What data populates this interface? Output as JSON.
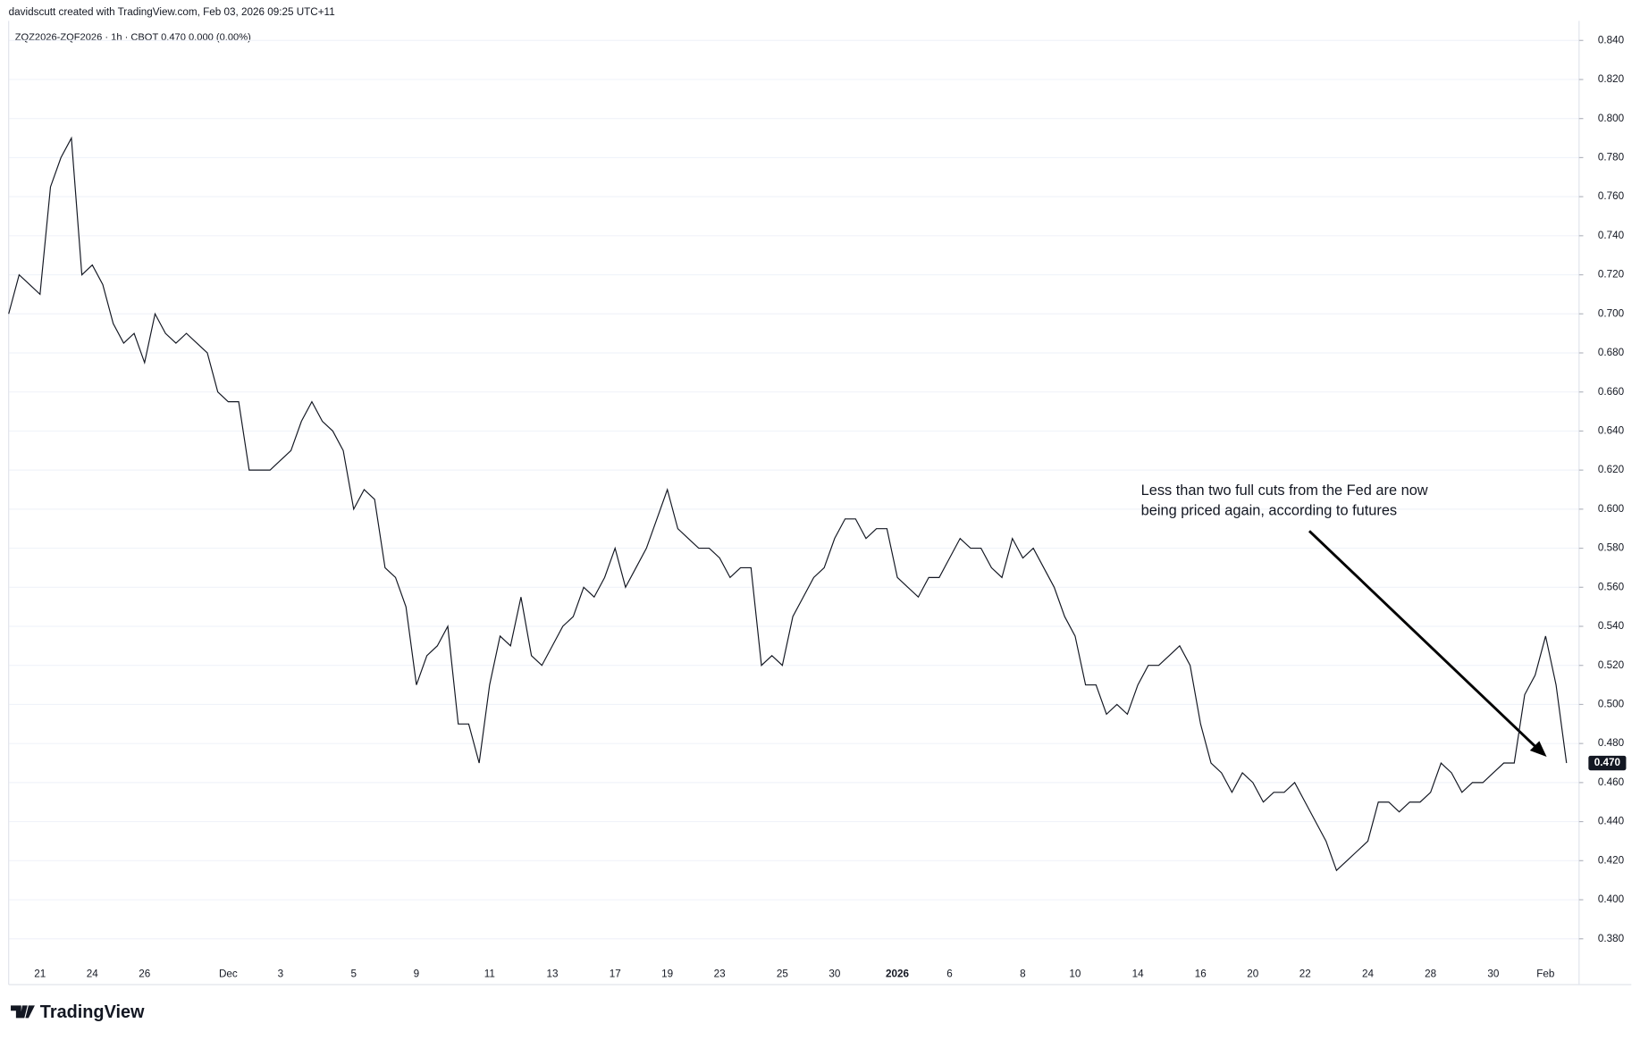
{
  "header": {
    "attribution": "davidscutt created with TradingView.com, Feb 03, 2026 09:25 UTC+11",
    "logo": "TradingView"
  },
  "chart_data": {
    "type": "line",
    "title": "ZQZ2026-ZQF2026 · 1h · CBOT  0.470  0.000 (0.00%)",
    "annotations": [
      "Less than two full cuts from the Fed are now",
      "being priced again, according to futures"
    ],
    "categories": [
      null,
      null,
      null,
      "21",
      null,
      null,
      null,
      null,
      "24",
      null,
      null,
      null,
      null,
      "26",
      null,
      null,
      null,
      null,
      null,
      null,
      null,
      "Dec",
      null,
      null,
      null,
      null,
      "3",
      null,
      null,
      null,
      null,
      null,
      null,
      "5",
      null,
      null,
      null,
      null,
      null,
      "9",
      null,
      null,
      null,
      null,
      null,
      null,
      "11",
      null,
      null,
      null,
      null,
      null,
      "13",
      null,
      null,
      null,
      null,
      null,
      "17",
      null,
      null,
      null,
      null,
      "19",
      null,
      null,
      null,
      null,
      "23",
      null,
      null,
      null,
      null,
      null,
      "25",
      null,
      null,
      null,
      null,
      "30",
      null,
      null,
      null,
      null,
      null,
      "2026",
      null,
      null,
      null,
      null,
      "6",
      null,
      null,
      null,
      null,
      null,
      null,
      "8",
      null,
      null,
      null,
      null,
      "10",
      null,
      null,
      null,
      null,
      null,
      "14",
      null,
      null,
      null,
      null,
      null,
      "16",
      null,
      null,
      null,
      null,
      "20",
      null,
      null,
      null,
      null,
      "22",
      null,
      null,
      null,
      null,
      null,
      "24",
      null,
      null,
      null,
      null,
      null,
      "28",
      null,
      null,
      null,
      null,
      null,
      "30",
      null,
      null,
      null,
      null,
      "Feb",
      null,
      null
    ],
    "series": [
      {
        "color": "#131722",
        "values": [
          0.7,
          0.72,
          0.715,
          0.71,
          0.765,
          0.78,
          0.79,
          0.72,
          0.725,
          0.715,
          0.695,
          0.685,
          0.69,
          0.675,
          0.7,
          0.69,
          0.685,
          0.69,
          0.685,
          0.68,
          0.66,
          0.655,
          0.655,
          0.62,
          0.62,
          0.62,
          0.625,
          0.63,
          0.645,
          0.655,
          0.645,
          0.64,
          0.63,
          0.6,
          0.61,
          0.605,
          0.57,
          0.565,
          0.55,
          0.51,
          0.525,
          0.53,
          0.54,
          0.49,
          0.49,
          0.47,
          0.51,
          0.535,
          0.53,
          0.555,
          0.525,
          0.52,
          0.53,
          0.54,
          0.545,
          0.56,
          0.555,
          0.565,
          0.58,
          0.56,
          0.57,
          0.58,
          0.595,
          0.61,
          0.59,
          0.585,
          0.58,
          0.58,
          0.575,
          0.565,
          0.57,
          0.57,
          0.52,
          0.525,
          0.52,
          0.545,
          0.555,
          0.565,
          0.57,
          0.585,
          0.595,
          0.595,
          0.585,
          0.59,
          0.59,
          0.565,
          0.56,
          0.555,
          0.565,
          0.565,
          0.575,
          0.585,
          0.58,
          0.58,
          0.57,
          0.565,
          0.585,
          0.575,
          0.58,
          0.57,
          0.56,
          0.545,
          0.535,
          0.51,
          0.51,
          0.495,
          0.5,
          0.495,
          0.51,
          0.52,
          0.52,
          0.525,
          0.53,
          0.52,
          0.49,
          0.47,
          0.465,
          0.455,
          0.465,
          0.46,
          0.45,
          0.455,
          0.455,
          0.46,
          0.45,
          0.44,
          0.43,
          0.415,
          0.42,
          0.425,
          0.43,
          0.45,
          0.45,
          0.445,
          0.45,
          0.45,
          0.455,
          0.47,
          0.465,
          0.455,
          0.46,
          0.46,
          0.465,
          0.47,
          0.47,
          0.505,
          0.515,
          0.535,
          0.51,
          0.47
        ]
      }
    ],
    "last_value": {
      "value": 0.47,
      "label": "0.470"
    },
    "ylim": [
      0.371,
      0.85
    ],
    "yticks": [
      {
        "value": 0.38,
        "label": "0.380"
      },
      {
        "value": 0.4,
        "label": "0.400"
      },
      {
        "value": 0.42,
        "label": "0.420"
      },
      {
        "value": 0.44,
        "label": "0.440"
      },
      {
        "value": 0.46,
        "label": "0.460"
      },
      {
        "value": 0.48,
        "label": "0.480"
      },
      {
        "value": 0.5,
        "label": "0.500"
      },
      {
        "value": 0.52,
        "label": "0.520"
      },
      {
        "value": 0.54,
        "label": "0.540"
      },
      {
        "value": 0.56,
        "label": "0.560"
      },
      {
        "value": 0.58,
        "label": "0.580"
      },
      {
        "value": 0.6,
        "label": "0.600"
      },
      {
        "value": 0.62,
        "label": "0.620"
      },
      {
        "value": 0.64,
        "label": "0.640"
      },
      {
        "value": 0.66,
        "label": "0.660"
      },
      {
        "value": 0.68,
        "label": "0.680"
      },
      {
        "value": 0.7,
        "label": "0.700"
      },
      {
        "value": 0.72,
        "label": "0.720"
      },
      {
        "value": 0.74,
        "label": "0.740"
      },
      {
        "value": 0.76,
        "label": "0.760"
      },
      {
        "value": 0.78,
        "label": "0.780"
      },
      {
        "value": 0.8,
        "label": "0.800"
      },
      {
        "value": 0.82,
        "label": "0.820"
      },
      {
        "value": 0.84,
        "label": "0.840"
      }
    ],
    "grid": true
  }
}
